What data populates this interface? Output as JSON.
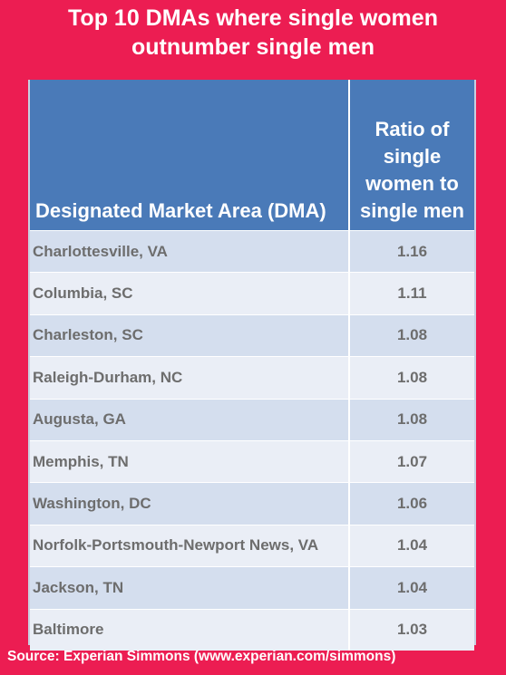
{
  "title": {
    "line1": "Top 10 DMAs where single women",
    "line2": "outnumber single men"
  },
  "table": {
    "header_dma": " Designated Market Area (DMA)",
    "header_ratio": "Ratio of single women to single men"
  },
  "source": "Source: Experian Simmons (www.experian.com/simmons)",
  "chart_data": {
    "type": "table",
    "title": "Top 10 DMAs where single women outnumber single men",
    "columns": [
      " Designated Market Area (DMA)",
      "Ratio of single women to single men"
    ],
    "categories": [
      "Charlottesville, VA",
      "Columbia, SC",
      "Charleston, SC",
      "Raleigh-Durham, NC",
      "Augusta, GA",
      "Memphis, TN",
      "Washington, DC",
      "Norfolk-Portsmouth-Newport News, VA",
      "Jackson, TN",
      "Baltimore"
    ],
    "values": [
      "1.16",
      "1.11",
      "1.08",
      "1.08",
      "1.08",
      "1.07",
      "1.06",
      "1.04",
      "1.04",
      "1.03"
    ]
  }
}
